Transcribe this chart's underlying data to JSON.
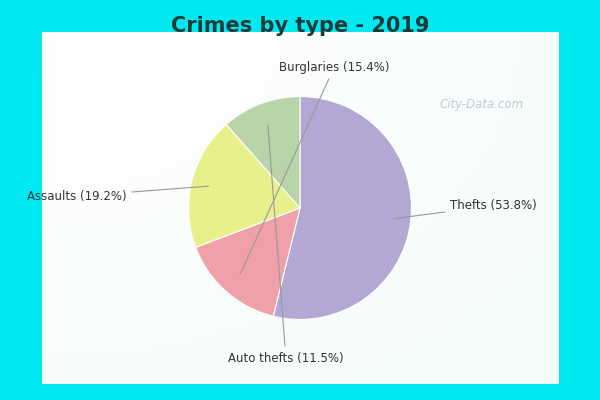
{
  "title": "Crimes by type - 2019",
  "slices": [
    {
      "label": "Thefts",
      "pct": 53.8,
      "color": "#b3a8d4"
    },
    {
      "label": "Burglaries",
      "pct": 15.4,
      "color": "#f0a0a8"
    },
    {
      "label": "Assaults",
      "pct": 19.2,
      "color": "#e8f08c"
    },
    {
      "label": "Auto thefts",
      "pct": 11.5,
      "color": "#b8d4a8"
    }
  ],
  "bg_cyan": "#00e8f0",
  "bg_inner_top_left": "#c8ede4",
  "bg_inner_center": "#f0f8f4",
  "watermark": "City-Data.com",
  "label_fontsize": 8.5,
  "title_fontsize": 15,
  "startangle": 90,
  "label_positions": {
    "Thefts": [
      1.32,
      0.0,
      "left"
    ],
    "Burglaries": [
      -0.2,
      1.22,
      "left"
    ],
    "Assaults": [
      -1.48,
      0.1,
      "right"
    ],
    "Auto thefts": [
      -0.15,
      -1.3,
      "center"
    ]
  }
}
